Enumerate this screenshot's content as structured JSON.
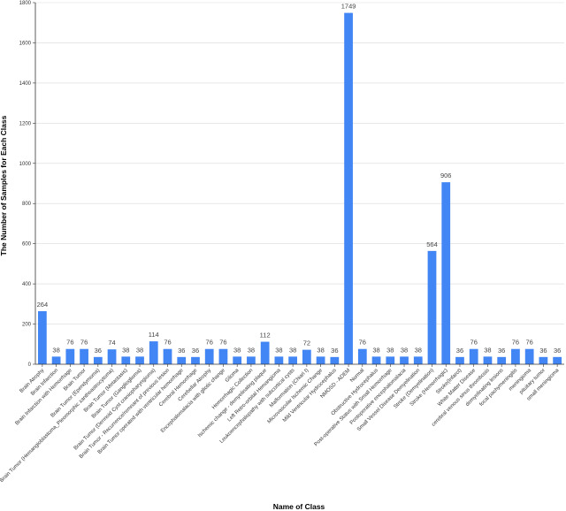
{
  "chart_data": {
    "type": "bar",
    "title": "",
    "xlabel": "Name of Class",
    "ylabel": "The Number of Samples for Each Class",
    "ylim": [
      0,
      1800
    ],
    "yticks": [
      0,
      200,
      400,
      600,
      800,
      1000,
      1200,
      1400,
      1600,
      1800
    ],
    "grid": "horizontal",
    "bar_color": "#4285f4",
    "categories": [
      "Brain Atrophy",
      "Brain Infarction",
      "Brain Infarction with Hemorrhage",
      "Brain Tumor",
      "Brain Tumor (Ependymoma)",
      "Brain Tumor (Hemangioblastoma_Pleomorphic xanthoastrocytoma)",
      "Brain Tumor (Metastasis)",
      "Brain Tumor (Ganglioglioma)",
      "Brain Tumor (Dermoid Cyst craniopharyngioma)",
      "Brain Tumor - Recurrence/remnant of previous lesion",
      "Brain Tumor operated with ventricular hemorrhage",
      "Cerebral Hemorrhage",
      "Cerebellar Atrophy",
      "Encephalomalacia with gliotic change",
      "Glioma",
      "Hemorrhagic Collection",
      "Ischemic change - demyelinating plaque",
      "Left Retro-orbital Hemangioma",
      "Leukoencephalopathy with subcortical cysts",
      "Malformation (Chiari I)",
      "Microvascular Ischemic Change",
      "Mild Ventricular Hydrocephalus",
      "NMOSD - ADEM",
      "Normal",
      "Obstructive Hydrocephalus",
      "Post-operative Status with Small Hemorrhage",
      "Postoperative encephalomalacia",
      "Small Vessel Disease Demyelination",
      "Stroke (Demyelination)",
      "Stroke (Hemorrhagic)",
      "Stroke(Infarct)",
      "White Matter Disease",
      "cerebral venous sinus thrombosis",
      "demyelinating lesions",
      "focal pachymeningitis",
      "meningioma",
      "pituitary tumor",
      "small meningioma"
    ],
    "values": [
      264,
      38,
      76,
      76,
      36,
      74,
      38,
      38,
      114,
      76,
      36,
      36,
      76,
      76,
      38,
      38,
      112,
      38,
      38,
      72,
      38,
      36,
      1749,
      76,
      38,
      38,
      38,
      38,
      564,
      906,
      36,
      76,
      38,
      36,
      76,
      76,
      36,
      36
    ]
  }
}
